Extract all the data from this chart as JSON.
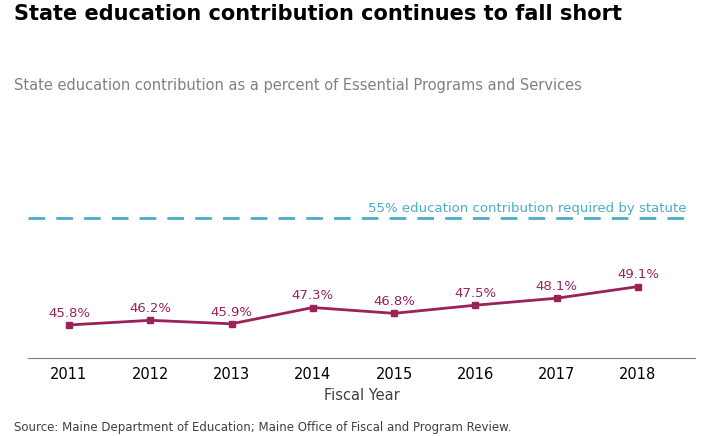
{
  "title": "State education contribution continues to fall short",
  "subtitle": "State education contribution as a percent of Essential Programs and Services",
  "years": [
    2011,
    2012,
    2013,
    2014,
    2015,
    2016,
    2017,
    2018
  ],
  "values": [
    45.8,
    46.2,
    45.9,
    47.3,
    46.8,
    47.5,
    48.1,
    49.1
  ],
  "labels": [
    "45.8%",
    "46.2%",
    "45.9%",
    "47.3%",
    "46.8%",
    "47.5%",
    "48.1%",
    "49.1%"
  ],
  "line_color": "#9B2158",
  "marker_color": "#9B2158",
  "reference_line_value": 55,
  "reference_line_color": "#4BACC6",
  "reference_line_label": "55% education contribution required by statute",
  "xlabel": "Fiscal Year",
  "ylim": [
    43,
    58
  ],
  "xlim": [
    2010.5,
    2018.7
  ],
  "source_text": "Source: Maine Department of Education; Maine Office of Fiscal and Program Review.",
  "title_fontsize": 15,
  "subtitle_fontsize": 10.5,
  "label_fontsize": 9.5,
  "axis_fontsize": 10.5,
  "source_fontsize": 8.5,
  "background_color": "#FFFFFF",
  "title_color": "#000000",
  "subtitle_color": "#808080",
  "source_color": "#404040"
}
